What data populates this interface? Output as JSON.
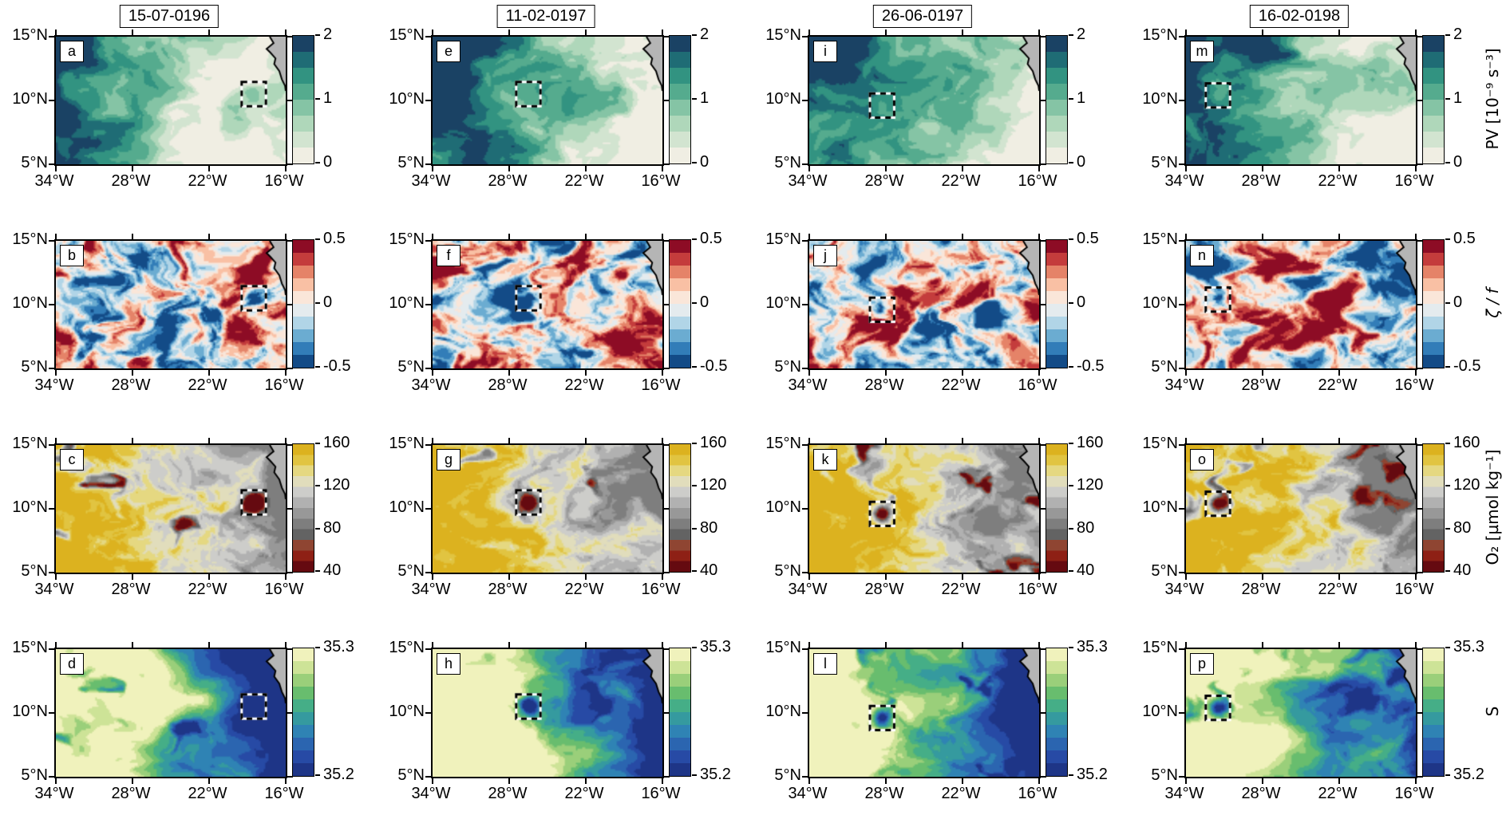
{
  "chart_data": {
    "type": "heatmap",
    "description": "4x4 grid of ocean-model surface maps of the tropical North Atlantic. Columns are model dates, rows are variables (PV, zeta/f, O2, S). A black-and-white dashed box tracks a westward-propagating eddy; gray polygon at the upper right is the West African coast.",
    "grid": {
      "n_rows": 4,
      "n_cols": 4
    },
    "column_dates": [
      "15-07-0196",
      "11-02-0197",
      "26-06-0197",
      "16-02-0198"
    ],
    "panel_letters_by_row": [
      [
        "a",
        "e",
        "i",
        "m"
      ],
      [
        "b",
        "f",
        "j",
        "n"
      ],
      [
        "c",
        "g",
        "k",
        "o"
      ],
      [
        "d",
        "h",
        "l",
        "p"
      ]
    ],
    "rows": [
      {
        "key": "pv",
        "variable": "PV",
        "colorbar_title": "PV [10⁻⁹ s⁻³]",
        "italic_title": false,
        "value_range": [
          0,
          2
        ],
        "colorbar_ticks": [
          0,
          1,
          2
        ],
        "tick_labels": [
          "0",
          "1",
          "2"
        ],
        "levels": 8,
        "colormap": [
          [
            0,
            "#fdf2ec"
          ],
          [
            0.14,
            "#dfe8d8"
          ],
          [
            0.28,
            "#badcc0"
          ],
          [
            0.42,
            "#8cc7a8"
          ],
          [
            0.56,
            "#56ab8e"
          ],
          [
            0.7,
            "#2f9180"
          ],
          [
            0.82,
            "#1e6a74"
          ],
          [
            0.91,
            "#1c4a68"
          ],
          [
            1,
            "#14315c"
          ]
        ]
      },
      {
        "key": "zeta-over-f",
        "variable": "zeta/f",
        "colorbar_title": "ζ / f",
        "italic_title": true,
        "value_range": [
          -0.5,
          0.5
        ],
        "colorbar_ticks": [
          -0.5,
          0,
          0.5
        ],
        "tick_labels": [
          "-0.5",
          "0",
          "0.5"
        ],
        "levels": 10,
        "colormap": [
          [
            0,
            "#053061"
          ],
          [
            0.1,
            "#2166ac"
          ],
          [
            0.2,
            "#4393c3"
          ],
          [
            0.3,
            "#92c5de"
          ],
          [
            0.4,
            "#d1e5f0"
          ],
          [
            0.5,
            "#f6f0ec"
          ],
          [
            0.6,
            "#fddbc7"
          ],
          [
            0.7,
            "#f4a582"
          ],
          [
            0.8,
            "#d6604d"
          ],
          [
            0.9,
            "#b2182b"
          ],
          [
            1,
            "#67001f"
          ]
        ]
      },
      {
        "key": "o2",
        "variable": "O2",
        "colorbar_title": "O₂ [µmol kg⁻¹]",
        "italic_title": false,
        "value_range": [
          40,
          160
        ],
        "colorbar_ticks": [
          40,
          80,
          120,
          160
        ],
        "tick_labels": [
          "40",
          "80",
          "120",
          "160"
        ],
        "levels": 12,
        "colormap": [
          [
            0,
            "#4e0511"
          ],
          [
            0.09,
            "#7f100f"
          ],
          [
            0.18,
            "#a63a1e"
          ],
          [
            0.27,
            "#5c5c5c"
          ],
          [
            0.4,
            "#868686"
          ],
          [
            0.55,
            "#b4b4b4"
          ],
          [
            0.66,
            "#d9d8d4"
          ],
          [
            0.75,
            "#e7e2a8"
          ],
          [
            0.85,
            "#e3c94b"
          ],
          [
            1,
            "#d9a90e"
          ]
        ]
      },
      {
        "key": "s",
        "variable": "S",
        "colorbar_title": "S",
        "italic_title": false,
        "value_range": [
          35.2,
          35.3
        ],
        "colorbar_ticks": [
          35.2,
          35.3
        ],
        "tick_labels": [
          "35.2",
          "35.3"
        ],
        "levels": 10,
        "colormap": [
          [
            0,
            "#1a2a78"
          ],
          [
            0.18,
            "#2950ae"
          ],
          [
            0.36,
            "#2f86b4"
          ],
          [
            0.52,
            "#3aa98e"
          ],
          [
            0.66,
            "#6cbe6b"
          ],
          [
            0.8,
            "#b4d983"
          ],
          [
            0.9,
            "#e6edac"
          ],
          [
            1,
            "#faf7cc"
          ]
        ]
      }
    ],
    "x_axis": {
      "label_type": "longitude",
      "ticks": [
        34,
        28,
        22,
        16
      ],
      "tick_labels": [
        "34°W",
        "28°W",
        "22°W",
        "16°W"
      ],
      "range_deg_w": [
        34,
        16
      ]
    },
    "y_axis": {
      "label_type": "latitude",
      "ticks": [
        15,
        10,
        5
      ],
      "tick_labels": [
        "15°N",
        "10°N",
        "5°N"
      ],
      "range_deg_n": [
        5,
        15
      ]
    },
    "eddy_track": [
      {
        "date": "15-07-0196",
        "lon_w": 18.5,
        "lat_n": 10.5
      },
      {
        "date": "11-02-0197",
        "lon_w": 26.5,
        "lat_n": 10.5
      },
      {
        "date": "26-06-0197",
        "lon_w": 28.3,
        "lat_n": 9.6
      },
      {
        "date": "16-02-0198",
        "lon_w": 31.5,
        "lat_n": 10.4
      }
    ],
    "eddy_box_size_deg": 1.9,
    "land": {
      "name": "west-african-coast",
      "color": "#b5b5b5",
      "coast_lonlat": [
        [
          17.25,
          15.0
        ],
        [
          16.95,
          14.5
        ],
        [
          17.5,
          14.05
        ],
        [
          17.2,
          13.75
        ],
        [
          16.8,
          13.3
        ],
        [
          16.9,
          12.85
        ],
        [
          16.5,
          12.3
        ],
        [
          16.3,
          11.65
        ],
        [
          16.05,
          11.15
        ],
        [
          16.0,
          10.75
        ]
      ]
    }
  },
  "style": {
    "background": "#ffffff",
    "frame_color": "#000000",
    "text_color": "#000000"
  }
}
